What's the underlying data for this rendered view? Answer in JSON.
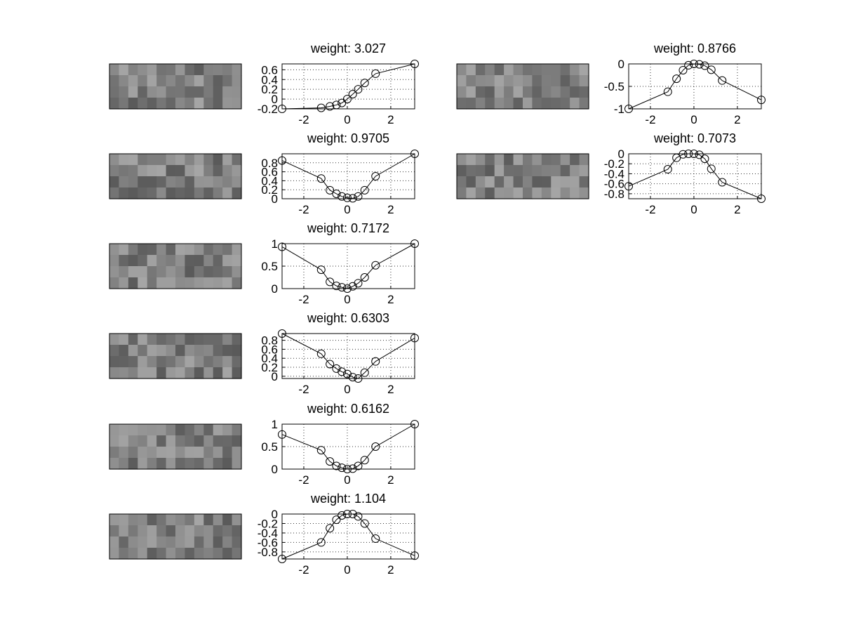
{
  "figure": {
    "background": "#ffffff",
    "line_color": "#000000"
  },
  "chart_data": [
    {
      "type": "line",
      "marker": "circle",
      "grid": true,
      "title": "weight: 3.027",
      "xlabel": "",
      "ylabel": "",
      "xlim": [
        -3,
        3.1
      ],
      "ylim": [
        -0.2,
        0.72
      ],
      "xticks": [
        -2,
        0,
        2
      ],
      "xtick_labels": [
        "-2",
        "0",
        "2"
      ],
      "yticks": [
        -0.2,
        0,
        0.2,
        0.4,
        0.6
      ],
      "ytick_labels": [
        "-0.2",
        "0",
        "0.2",
        "0.4",
        "0.6"
      ],
      "series": [
        {
          "x": [
            -3.0,
            -1.2,
            -0.8,
            -0.5,
            -0.25,
            0.0,
            0.25,
            0.5,
            0.8,
            1.3,
            3.1
          ],
          "y": [
            -0.2,
            -0.18,
            -0.15,
            -0.12,
            -0.08,
            0.0,
            0.1,
            0.2,
            0.33,
            0.52,
            0.72
          ]
        }
      ],
      "image_patch": {
        "kind": "grayscale-filter",
        "grid": [
          4,
          14
        ]
      }
    },
    {
      "type": "line",
      "marker": "circle",
      "grid": true,
      "title": "weight: 0.8766",
      "xlabel": "",
      "ylabel": "",
      "xlim": [
        -3,
        3.1
      ],
      "ylim": [
        -1,
        0
      ],
      "xticks": [
        -2,
        0,
        2
      ],
      "xtick_labels": [
        "-2",
        "0",
        "2"
      ],
      "yticks": [
        -1,
        -0.5,
        0
      ],
      "ytick_labels": [
        "-1",
        "-0.5",
        "0"
      ],
      "series": [
        {
          "x": [
            -3.0,
            -1.2,
            -0.8,
            -0.5,
            -0.25,
            0.0,
            0.25,
            0.5,
            0.8,
            1.3,
            3.1
          ],
          "y": [
            -1.0,
            -0.62,
            -0.33,
            -0.14,
            -0.03,
            0.0,
            -0.01,
            -0.04,
            -0.13,
            -0.37,
            -0.8
          ]
        }
      ],
      "image_patch": {
        "kind": "grayscale-filter",
        "grid": [
          4,
          14
        ]
      }
    },
    {
      "type": "line",
      "marker": "circle",
      "grid": true,
      "title": "weight: 0.9705",
      "xlabel": "",
      "ylabel": "",
      "xlim": [
        -3,
        3.1
      ],
      "ylim": [
        0,
        1
      ],
      "xticks": [
        -2,
        0,
        2
      ],
      "xtick_labels": [
        "-2",
        "0",
        "2"
      ],
      "yticks": [
        0,
        0.2,
        0.4,
        0.6,
        0.8
      ],
      "ytick_labels": [
        "0",
        "0.2",
        "0.4",
        "0.6",
        "0.8"
      ],
      "series": [
        {
          "x": [
            -3.0,
            -1.2,
            -0.8,
            -0.5,
            -0.25,
            0.0,
            0.25,
            0.5,
            0.8,
            1.3,
            3.1
          ],
          "y": [
            0.85,
            0.45,
            0.19,
            0.11,
            0.05,
            0.02,
            0.01,
            0.05,
            0.19,
            0.5,
            1.0
          ]
        }
      ],
      "image_patch": {
        "kind": "grayscale-filter",
        "grid": [
          4,
          14
        ]
      }
    },
    {
      "type": "line",
      "marker": "circle",
      "grid": true,
      "title": "weight: 0.7073",
      "xlabel": "",
      "ylabel": "",
      "xlim": [
        -3,
        3.1
      ],
      "ylim": [
        -0.9,
        0
      ],
      "xticks": [
        -2,
        0,
        2
      ],
      "xtick_labels": [
        "-2",
        "0",
        "2"
      ],
      "yticks": [
        -0.8,
        -0.6,
        -0.4,
        -0.2,
        0
      ],
      "ytick_labels": [
        "-0.8",
        "-0.6",
        "-0.4",
        "-0.2",
        "0"
      ],
      "series": [
        {
          "x": [
            -3.0,
            -1.2,
            -0.8,
            -0.5,
            -0.25,
            0.0,
            0.25,
            0.5,
            0.8,
            1.3,
            3.1
          ],
          "y": [
            -0.65,
            -0.31,
            -0.08,
            -0.01,
            0.0,
            0.0,
            -0.02,
            -0.1,
            -0.3,
            -0.57,
            -0.9
          ]
        }
      ],
      "image_patch": {
        "kind": "grayscale-filter",
        "grid": [
          4,
          14
        ]
      }
    },
    {
      "type": "line",
      "marker": "circle",
      "grid": true,
      "title": "weight: 0.7172",
      "xlabel": "",
      "ylabel": "",
      "xlim": [
        -3,
        3.1
      ],
      "ylim": [
        0,
        1
      ],
      "xticks": [
        -2,
        0,
        2
      ],
      "xtick_labels": [
        "-2",
        "0",
        "2"
      ],
      "yticks": [
        0,
        0.5,
        1
      ],
      "ytick_labels": [
        "0",
        "0.5",
        "1"
      ],
      "series": [
        {
          "x": [
            -3.0,
            -1.2,
            -0.8,
            -0.5,
            -0.25,
            0.0,
            0.25,
            0.5,
            0.8,
            1.3,
            3.1
          ],
          "y": [
            0.93,
            0.42,
            0.15,
            0.06,
            0.03,
            0.0,
            0.05,
            0.12,
            0.25,
            0.52,
            1.0
          ]
        }
      ],
      "image_patch": {
        "kind": "grayscale-filter",
        "grid": [
          4,
          14
        ]
      }
    },
    {
      "type": "line",
      "marker": "circle",
      "grid": true,
      "title": "weight: 0.6303",
      "xlabel": "",
      "ylabel": "",
      "xlim": [
        -3,
        3.1
      ],
      "ylim": [
        -0.05,
        0.95
      ],
      "xticks": [
        -2,
        0,
        2
      ],
      "xtick_labels": [
        "-2",
        "0",
        "2"
      ],
      "yticks": [
        0,
        0.2,
        0.4,
        0.6,
        0.8
      ],
      "ytick_labels": [
        "0",
        "0.2",
        "0.4",
        "0.6",
        "0.8"
      ],
      "series": [
        {
          "x": [
            -3.0,
            -1.2,
            -0.8,
            -0.5,
            -0.25,
            0.0,
            0.25,
            0.5,
            0.8,
            1.3,
            3.1
          ],
          "y": [
            0.95,
            0.5,
            0.27,
            0.17,
            0.1,
            0.05,
            -0.02,
            -0.05,
            0.08,
            0.33,
            0.85
          ]
        }
      ],
      "image_patch": {
        "kind": "grayscale-filter",
        "grid": [
          4,
          14
        ]
      }
    },
    {
      "type": "line",
      "marker": "circle",
      "grid": true,
      "title": "weight: 0.6162",
      "xlabel": "",
      "ylabel": "",
      "xlim": [
        -3,
        3.1
      ],
      "ylim": [
        0,
        1
      ],
      "xticks": [
        -2,
        0,
        2
      ],
      "xtick_labels": [
        "-2",
        "0",
        "2"
      ],
      "yticks": [
        0,
        0.5,
        1
      ],
      "ytick_labels": [
        "0",
        "0.5",
        "1"
      ],
      "series": [
        {
          "x": [
            -3.0,
            -1.2,
            -0.8,
            -0.5,
            -0.25,
            0.0,
            0.25,
            0.5,
            0.8,
            1.3,
            3.1
          ],
          "y": [
            0.77,
            0.42,
            0.17,
            0.07,
            0.03,
            0.0,
            0.01,
            0.07,
            0.2,
            0.5,
            1.0
          ]
        }
      ],
      "image_patch": {
        "kind": "grayscale-filter",
        "grid": [
          4,
          14
        ]
      }
    },
    {
      "type": "line",
      "marker": "circle",
      "grid": true,
      "title": "weight: 1.104",
      "xlabel": "",
      "ylabel": "",
      "xlim": [
        -3,
        3.1
      ],
      "ylim": [
        -0.95,
        0
      ],
      "xticks": [
        -2,
        0,
        2
      ],
      "xtick_labels": [
        "-2",
        "0",
        "2"
      ],
      "yticks": [
        -0.8,
        -0.6,
        -0.4,
        -0.2,
        0
      ],
      "ytick_labels": [
        "-0.8",
        "-0.6",
        "-0.4",
        "-0.2",
        "0"
      ],
      "series": [
        {
          "x": [
            -3.0,
            -1.2,
            -0.8,
            -0.5,
            -0.25,
            0.0,
            0.25,
            0.5,
            0.8,
            1.3,
            3.1
          ],
          "y": [
            -0.95,
            -0.6,
            -0.3,
            -0.12,
            -0.03,
            0.0,
            0.0,
            -0.05,
            -0.2,
            -0.52,
            -0.88
          ]
        }
      ],
      "image_patch": {
        "kind": "grayscale-filter",
        "grid": [
          4,
          14
        ]
      }
    }
  ]
}
